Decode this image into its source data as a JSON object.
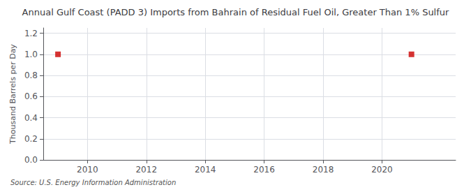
{
  "chart_data": {
    "type": "scatter",
    "title": "Annual Gulf Coast (PADD 3) Imports from Bahrain of Residual Fuel Oil, Greater Than 1% Sulfur",
    "ylabel": "Thousand Barrels per Day",
    "source": "Source: U.S. Energy Information Administration",
    "x": [
      2009,
      2021
    ],
    "values": [
      1.0,
      1.0
    ],
    "color": "#cc0000",
    "marker": "square",
    "xlim": [
      2008.5,
      2022.5
    ],
    "xticks": [
      2010,
      2012,
      2014,
      2016,
      2018,
      2020
    ],
    "ylim": [
      0.0,
      1.25
    ],
    "yticks": [
      {
        "value": 0.0,
        "label": "0.0"
      },
      0.2,
      0.4,
      0.6,
      0.8,
      {
        "value": 1.0,
        "label": "1.0"
      },
      1.2
    ],
    "grid": true
  }
}
